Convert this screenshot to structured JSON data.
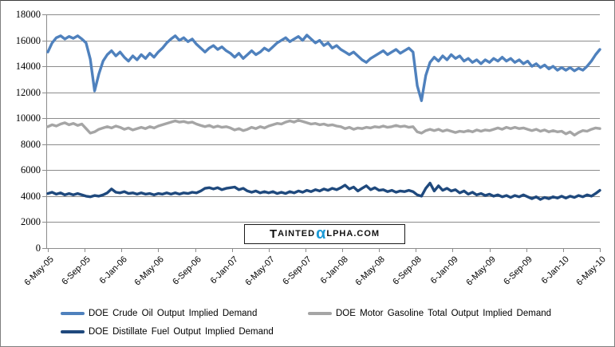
{
  "watermark": {
    "lead_cap": "T",
    "small_1": "AINTED",
    "alpha": "α",
    "small_2": "LPHA.COM",
    "alpha_color": "#1B9AD6"
  },
  "legend": {
    "position": "bottom"
  },
  "chart_data": {
    "type": "line",
    "title": "",
    "xlabel": "",
    "ylabel": "",
    "ylim": [
      0,
      18000
    ],
    "grid": true,
    "legend_position": "bottom",
    "y_tick_labels": [
      "0",
      "2000",
      "4000",
      "6000",
      "8000",
      "10000",
      "12000",
      "14000",
      "16000",
      "18000"
    ],
    "x_tick_labels": [
      "6-May-05",
      "6-Sep-05",
      "6-Jan-06",
      "6-May-06",
      "6-Sep-06",
      "6-Jan-07",
      "6-May-07",
      "6-Sep-07",
      "6-Jan-08",
      "6-May-08",
      "6-Sep-08",
      "6-Jan-09",
      "6-May-09",
      "6-Sep-09",
      "6-Jan-10",
      "6-May-10"
    ],
    "axis_color": "#8c8c8c",
    "grid_color": "#8c8c8c",
    "series": [
      {
        "name": "DOE Crude Oil Output Implied Demand",
        "color": "#4F81BD",
        "values": [
          15100,
          15800,
          16200,
          16350,
          16100,
          16300,
          16150,
          16350,
          16100,
          15800,
          14550,
          12100,
          13400,
          14400,
          14900,
          15200,
          14800,
          15100,
          14700,
          14400,
          14800,
          14500,
          14900,
          14600,
          15000,
          14700,
          15100,
          15400,
          15800,
          16100,
          16350,
          16000,
          16200,
          15900,
          16100,
          15700,
          15400,
          15100,
          15400,
          15600,
          15300,
          15500,
          15200,
          15000,
          14700,
          15000,
          14600,
          14900,
          15200,
          14900,
          15100,
          15400,
          15200,
          15500,
          15800,
          16000,
          16200,
          15900,
          16100,
          16300,
          16000,
          16400,
          16100,
          15800,
          16000,
          15600,
          15800,
          15400,
          15600,
          15300,
          15100,
          14900,
          15100,
          14800,
          14500,
          14300,
          14600,
          14800,
          15000,
          15200,
          14900,
          15100,
          15300,
          15000,
          15200,
          15400,
          15100,
          12500,
          11350,
          13300,
          14300,
          14700,
          14400,
          14800,
          14500,
          14900,
          14600,
          14800,
          14400,
          14600,
          14300,
          14500,
          14200,
          14500,
          14300,
          14600,
          14400,
          14700,
          14400,
          14600,
          14300,
          14500,
          14200,
          14400,
          14000,
          14200,
          13900,
          14100,
          13800,
          14000,
          13700,
          13900,
          13700,
          13900,
          13650,
          13850,
          13700,
          14000,
          14400,
          14900,
          15300
        ]
      },
      {
        "name": "DOE Motor Gasoline Total Output Implied Demand",
        "color": "#A5A5A5",
        "values": [
          9350,
          9500,
          9400,
          9550,
          9650,
          9500,
          9600,
          9450,
          9550,
          9200,
          8850,
          8950,
          9150,
          9250,
          9350,
          9250,
          9400,
          9300,
          9150,
          9250,
          9100,
          9200,
          9300,
          9200,
          9350,
          9250,
          9400,
          9500,
          9600,
          9700,
          9800,
          9700,
          9750,
          9650,
          9700,
          9550,
          9450,
          9350,
          9450,
          9300,
          9400,
          9300,
          9350,
          9250,
          9100,
          9200,
          9050,
          9150,
          9300,
          9200,
          9350,
          9250,
          9400,
          9500,
          9600,
          9550,
          9700,
          9800,
          9700,
          9850,
          9750,
          9650,
          9550,
          9600,
          9500,
          9550,
          9450,
          9500,
          9400,
          9350,
          9200,
          9300,
          9150,
          9250,
          9200,
          9300,
          9250,
          9350,
          9300,
          9400,
          9300,
          9350,
          9450,
          9350,
          9400,
          9300,
          9350,
          8950,
          8850,
          9050,
          9150,
          9050,
          9150,
          9000,
          9100,
          9000,
          8900,
          9000,
          8950,
          9050,
          8950,
          9100,
          9000,
          9100,
          9050,
          9150,
          9250,
          9150,
          9300,
          9200,
          9300,
          9200,
          9250,
          9150,
          9050,
          9150,
          9000,
          9100,
          8950,
          9050,
          8950,
          9000,
          8800,
          8950,
          8700,
          8900,
          9050,
          9000,
          9150,
          9250,
          9200
        ]
      },
      {
        "name": "DOE Distillate Fuel Output Implied Demand",
        "color": "#1F497D",
        "values": [
          4200,
          4300,
          4150,
          4250,
          4100,
          4200,
          4100,
          4200,
          4100,
          4000,
          3950,
          4050,
          4000,
          4100,
          4250,
          4550,
          4300,
          4250,
          4350,
          4200,
          4250,
          4150,
          4250,
          4150,
          4200,
          4100,
          4200,
          4150,
          4250,
          4150,
          4250,
          4150,
          4250,
          4200,
          4300,
          4250,
          4400,
          4600,
          4650,
          4550,
          4650,
          4500,
          4600,
          4650,
          4700,
          4500,
          4600,
          4400,
          4300,
          4400,
          4250,
          4350,
          4250,
          4350,
          4200,
          4300,
          4200,
          4350,
          4250,
          4400,
          4300,
          4450,
          4350,
          4500,
          4400,
          4550,
          4450,
          4600,
          4500,
          4650,
          4850,
          4550,
          4700,
          4400,
          4600,
          4800,
          4500,
          4650,
          4450,
          4500,
          4350,
          4450,
          4300,
          4400,
          4350,
          4450,
          4350,
          4100,
          4000,
          4600,
          5000,
          4400,
          4800,
          4450,
          4600,
          4400,
          4500,
          4250,
          4400,
          4150,
          4300,
          4100,
          4200,
          4050,
          4150,
          4000,
          4100,
          3950,
          4050,
          3900,
          4050,
          3950,
          4100,
          3950,
          3800,
          3950,
          3750,
          3900,
          3800,
          3950,
          3850,
          4000,
          3850,
          4000,
          3900,
          4050,
          3950,
          4100,
          4000,
          4200,
          4450
        ]
      }
    ]
  }
}
